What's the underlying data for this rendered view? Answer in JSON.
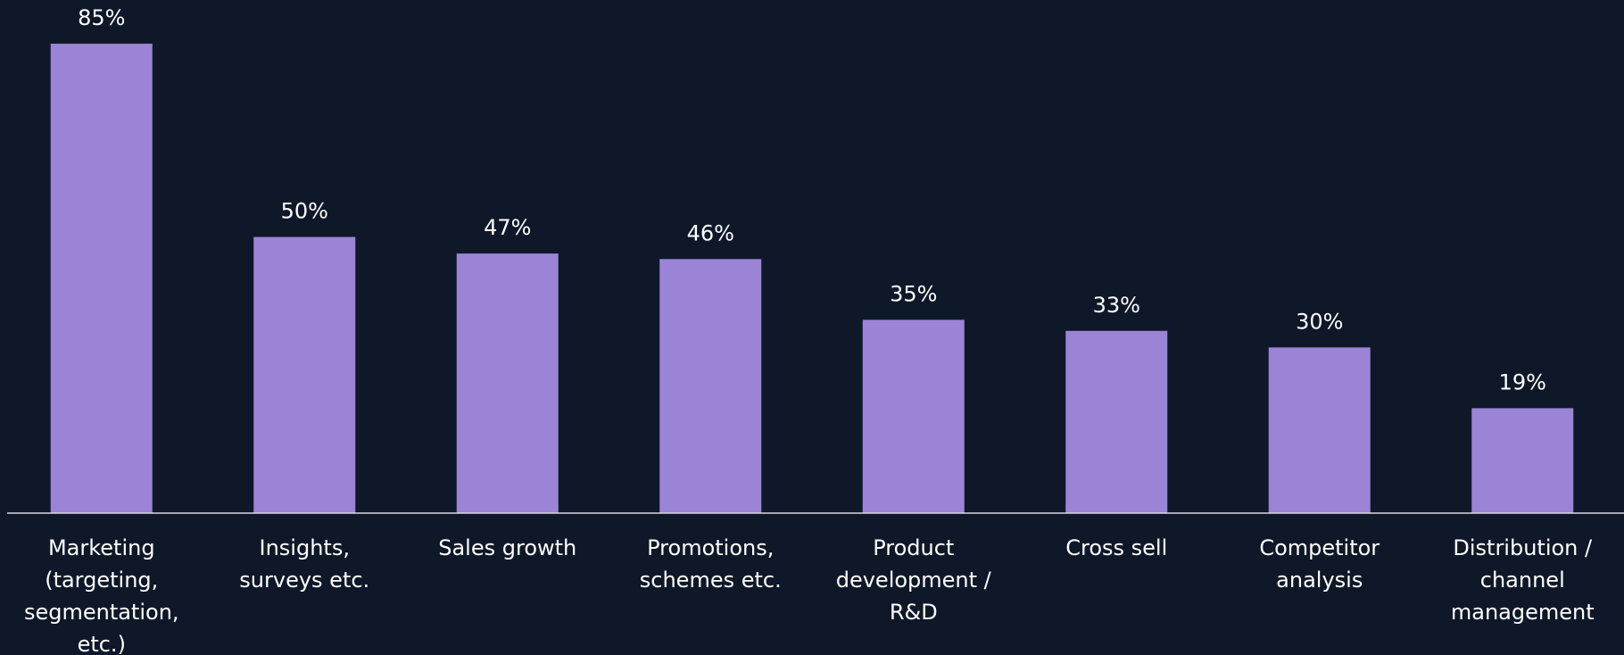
{
  "chart_data": {
    "type": "bar",
    "categories": [
      "Marketing (targeting, segmentation, etc.)",
      "Insights, surveys etc.",
      "Sales growth",
      "Promotions, schemes etc.",
      "Product development / R&D",
      "Cross sell",
      "Competitor analysis",
      "Distribution / channel management"
    ],
    "values": [
      85,
      50,
      47,
      46,
      35,
      33,
      30,
      19
    ],
    "value_labels": [
      "85%",
      "50%",
      "47%",
      "46%",
      "35%",
      "33%",
      "30%",
      "19%"
    ],
    "color": "#9b84d6",
    "ylim": [
      0,
      90
    ]
  }
}
